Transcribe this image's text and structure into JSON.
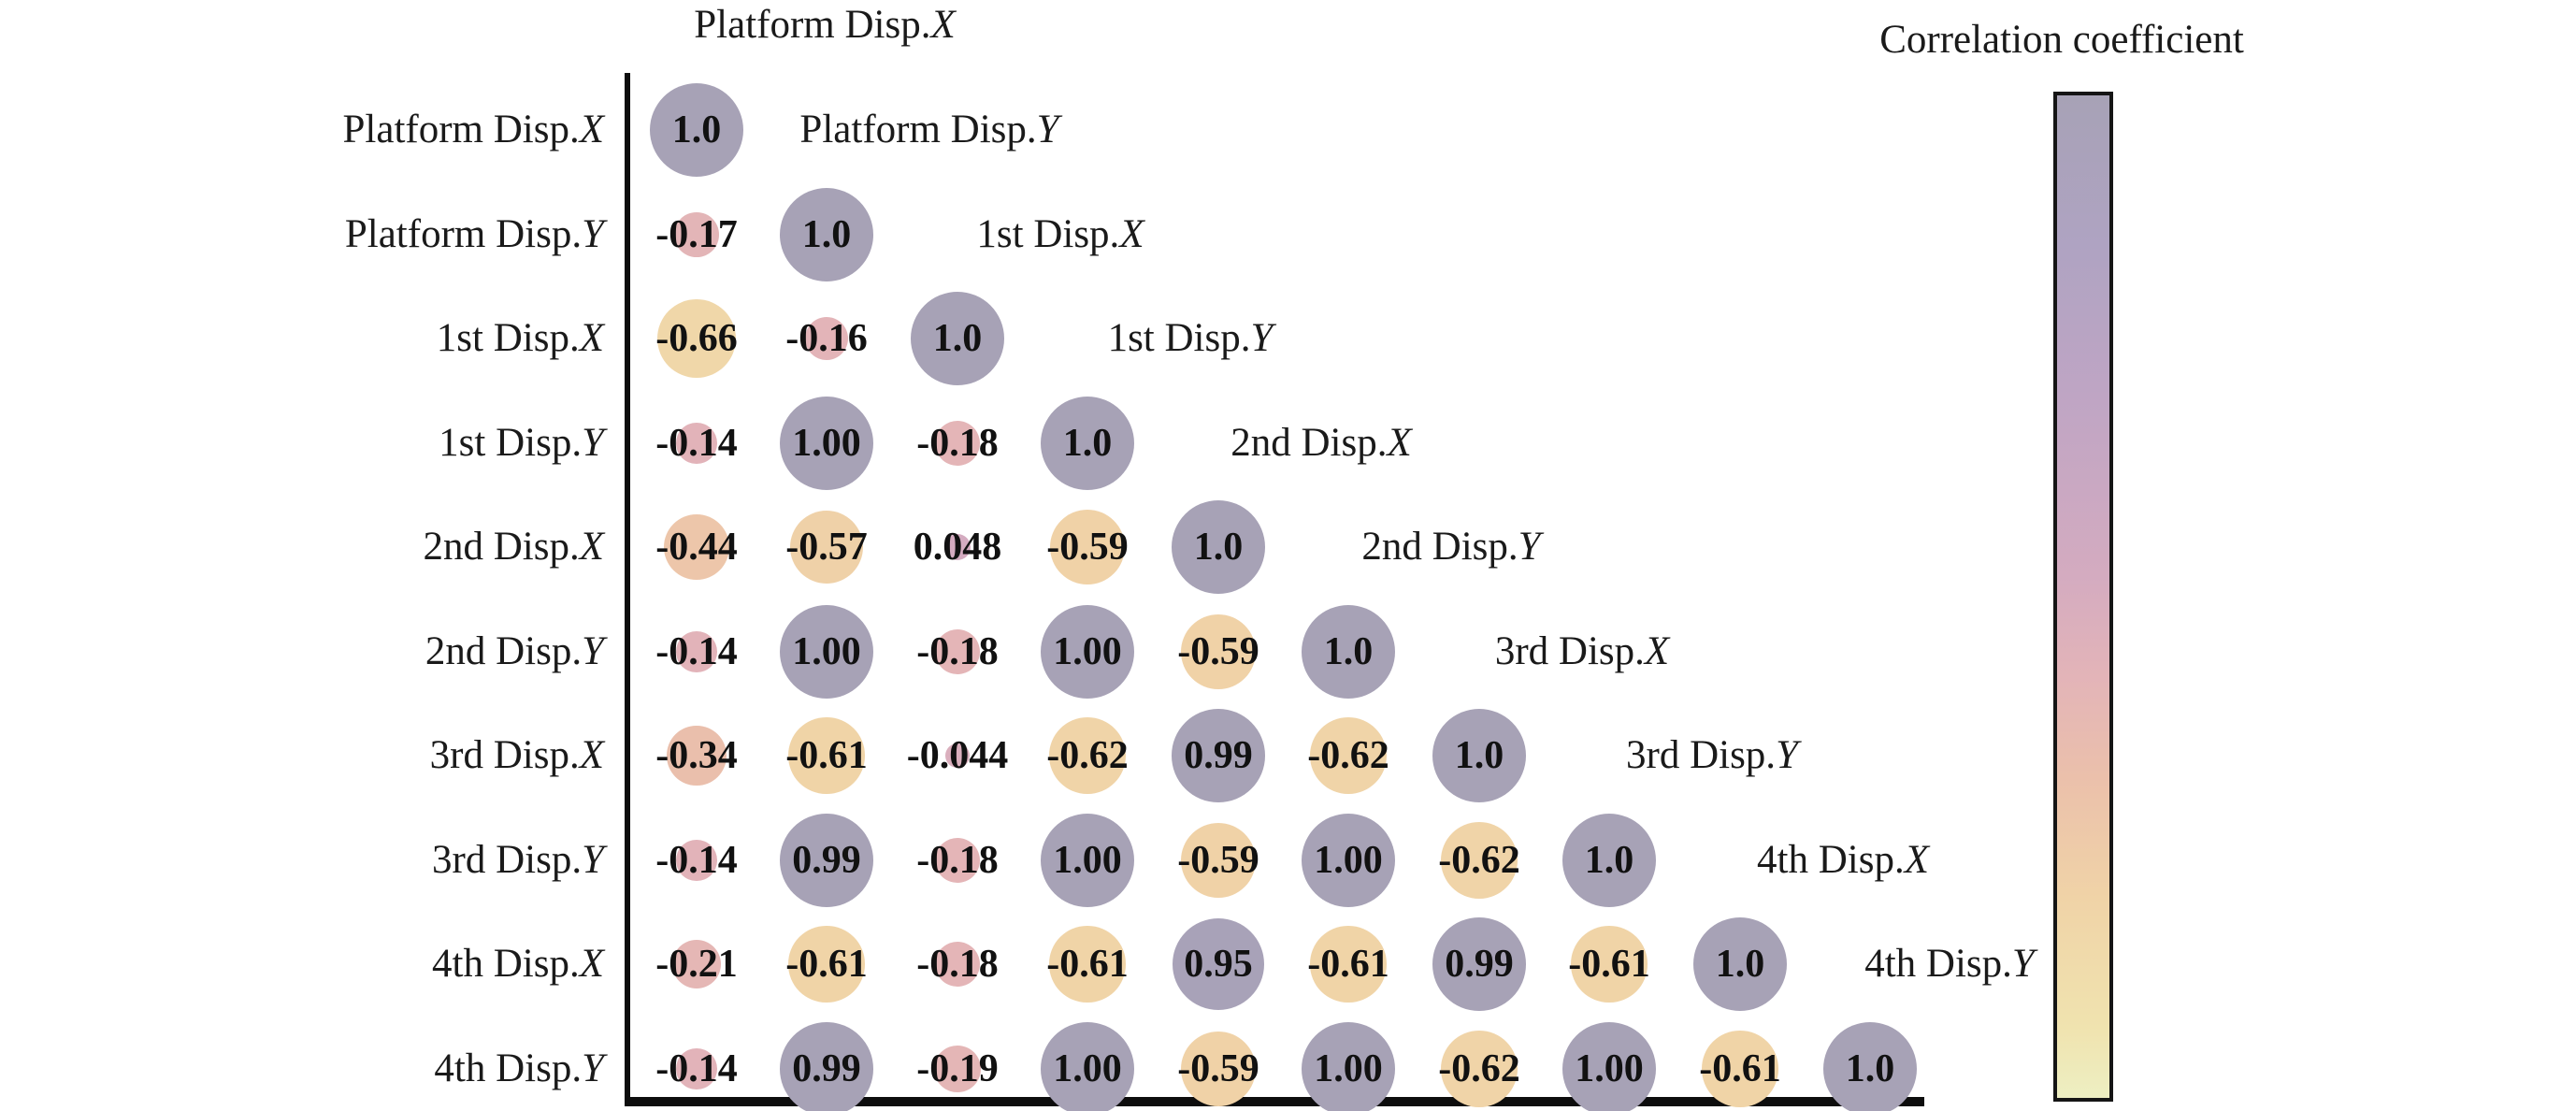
{
  "figure": {
    "background": "#ffffff",
    "axis_color": "#0d0d0d",
    "value_text_color": "#111111",
    "colorbar_title": "Correlation coefficient"
  },
  "chart_data": {
    "type": "heatmap",
    "subtype": "lower-triangular correlation bubble matrix (circle size and color encode correlation)",
    "variables": [
      {
        "text": "Platform Disp.",
        "var": "X"
      },
      {
        "text": "Platform Disp.",
        "var": "Y"
      },
      {
        "text": "1st Disp.",
        "var": "X"
      },
      {
        "text": "1st Disp.",
        "var": "Y"
      },
      {
        "text": "2nd Disp.",
        "var": "X"
      },
      {
        "text": "2nd Disp.",
        "var": "Y"
      },
      {
        "text": "3rd Disp.",
        "var": "X"
      },
      {
        "text": "3rd Disp.",
        "var": "Y"
      },
      {
        "text": "4th Disp.",
        "var": "X"
      },
      {
        "text": "4th Disp.",
        "var": "Y"
      }
    ],
    "matrix_display": [
      [
        "1.0"
      ],
      [
        "-0.17",
        "1.0"
      ],
      [
        "-0.66",
        "-0.16",
        "1.0"
      ],
      [
        "-0.14",
        "1.00",
        "-0.18",
        "1.0"
      ],
      [
        "-0.44",
        "-0.57",
        "0.048",
        "-0.59",
        "1.0"
      ],
      [
        "-0.14",
        "1.00",
        "-0.18",
        "1.00",
        "-0.59",
        "1.0"
      ],
      [
        "-0.34",
        "-0.61",
        "-0.044",
        "-0.62",
        "0.99",
        "-0.62",
        "1.0"
      ],
      [
        "-0.14",
        "0.99",
        "-0.18",
        "1.00",
        "-0.59",
        "1.00",
        "-0.62",
        "1.0"
      ],
      [
        "-0.21",
        "-0.61",
        "-0.18",
        "-0.61",
        "0.95",
        "-0.61",
        "0.99",
        "-0.61",
        "1.0"
      ],
      [
        "-0.14",
        "0.99",
        "-0.19",
        "1.00",
        "-0.59",
        "1.00",
        "-0.62",
        "1.00",
        "-0.61",
        "1.0"
      ]
    ],
    "matrix_values": [
      [
        1.0
      ],
      [
        -0.17,
        1.0
      ],
      [
        -0.66,
        -0.16,
        1.0
      ],
      [
        -0.14,
        1.0,
        -0.18,
        1.0
      ],
      [
        -0.44,
        -0.57,
        0.048,
        -0.59,
        1.0
      ],
      [
        -0.14,
        1.0,
        -0.18,
        1.0,
        -0.59,
        1.0
      ],
      [
        -0.34,
        -0.61,
        -0.044,
        -0.62,
        0.99,
        -0.62,
        1.0
      ],
      [
        -0.14,
        0.99,
        -0.18,
        1.0,
        -0.59,
        1.0,
        -0.62,
        1.0
      ],
      [
        -0.21,
        -0.61,
        -0.18,
        -0.61,
        0.95,
        -0.61,
        0.99,
        -0.61,
        1.0
      ],
      [
        -0.14,
        0.99,
        -0.19,
        1.0,
        -0.59,
        1.0,
        -0.62,
        1.0,
        -0.61,
        1.0
      ]
    ],
    "colorbar": {
      "title": "Correlation coefficient",
      "min": -1,
      "max": 1,
      "tick_labels": [],
      "gradient_stops": [
        {
          "t": 0.0,
          "color": "#a7a2b6"
        },
        {
          "t": 0.15,
          "color": "#afa3c2"
        },
        {
          "t": 0.3,
          "color": "#bfa5c4"
        },
        {
          "t": 0.48,
          "color": "#d4abc0"
        },
        {
          "t": 0.58,
          "color": "#e3b4b8"
        },
        {
          "t": 0.68,
          "color": "#ebc0ab"
        },
        {
          "t": 0.8,
          "color": "#f0d3a7"
        },
        {
          "t": 0.93,
          "color": "#f0e3af"
        },
        {
          "t": 1.0,
          "color": "#edefc2"
        }
      ]
    },
    "legend_position": "right"
  }
}
